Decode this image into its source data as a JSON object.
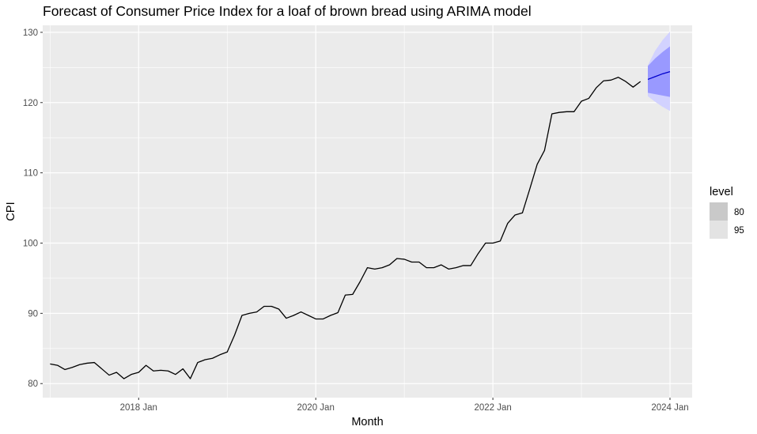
{
  "chart_data": {
    "type": "line",
    "title": "Forecast of Consumer Price Index for a loaf of brown bread using ARIMA model",
    "xlabel": "Month",
    "ylabel": "CPI",
    "xlim": [
      "2016-12",
      "2024-04"
    ],
    "ylim": [
      78,
      131
    ],
    "x_ticks": [
      {
        "date": "2018-01",
        "label": "2018 Jan"
      },
      {
        "date": "2020-01",
        "label": "2020 Jan"
      },
      {
        "date": "2022-01",
        "label": "2022 Jan"
      },
      {
        "date": "2024-01",
        "label": "2024 Jan"
      }
    ],
    "y_ticks": [
      80,
      90,
      100,
      110,
      120,
      130
    ],
    "grid": true,
    "legend": {
      "title": "level",
      "position": "right",
      "entries": [
        {
          "label": "80",
          "color": "#c9c9c9"
        },
        {
          "label": "95",
          "color": "#e3e3e3"
        }
      ]
    },
    "colors": {
      "panel": "#ebebeb",
      "grid": "#ffffff",
      "history_line": "#000000",
      "forecast_line": "#0000cc",
      "band_80": "#9999ff",
      "band_95": "#d2d2ff"
    },
    "series": [
      {
        "name": "",
        "x": [
          "2017-01",
          "2017-02",
          "2017-03",
          "2017-04",
          "2017-05",
          "2017-06",
          "2017-07",
          "2017-08",
          "2017-09",
          "2017-10",
          "2017-11",
          "2017-12",
          "2018-01",
          "2018-02",
          "2018-03",
          "2018-04",
          "2018-05",
          "2018-06",
          "2018-07",
          "2018-08",
          "2018-09",
          "2018-10",
          "2018-11",
          "2018-12",
          "2019-01",
          "2019-02",
          "2019-03",
          "2019-04",
          "2019-05",
          "2019-06",
          "2019-07",
          "2019-08",
          "2019-09",
          "2019-10",
          "2019-11",
          "2019-12",
          "2020-01",
          "2020-02",
          "2020-03",
          "2020-04",
          "2020-05",
          "2020-06",
          "2020-07",
          "2020-08",
          "2020-09",
          "2020-10",
          "2020-11",
          "2020-12",
          "2021-01",
          "2021-02",
          "2021-03",
          "2021-04",
          "2021-05",
          "2021-06",
          "2021-07",
          "2021-08",
          "2021-09",
          "2021-10",
          "2021-11",
          "2021-12",
          "2022-01",
          "2022-02",
          "2022-03",
          "2022-04",
          "2022-05",
          "2022-06",
          "2022-07",
          "2022-08",
          "2022-09",
          "2022-10",
          "2022-11",
          "2022-12",
          "2023-01",
          "2023-02",
          "2023-03",
          "2023-04",
          "2023-05",
          "2023-06",
          "2023-07",
          "2023-08",
          "2023-09"
        ],
        "values": [
          82.8,
          82.6,
          82.0,
          82.3,
          82.7,
          82.9,
          83.0,
          82.1,
          81.2,
          81.6,
          80.7,
          81.3,
          81.6,
          82.6,
          81.8,
          81.9,
          81.8,
          81.3,
          82.1,
          80.7,
          83.0,
          83.4,
          83.6,
          84.1,
          84.5,
          86.9,
          89.7,
          90.0,
          90.2,
          91.0,
          91.0,
          90.6,
          89.3,
          89.7,
          90.2,
          89.7,
          89.2,
          89.2,
          89.7,
          90.1,
          92.6,
          92.7,
          94.5,
          96.5,
          96.3,
          96.5,
          96.9,
          97.8,
          97.7,
          97.3,
          97.3,
          96.5,
          96.5,
          96.9,
          96.3,
          96.5,
          96.8,
          96.8,
          98.5,
          100.0,
          100.0,
          100.3,
          102.8,
          104.0,
          104.3,
          107.7,
          111.2,
          113.2,
          118.4,
          118.6,
          118.7,
          118.7,
          120.2,
          120.6,
          122.1,
          123.1,
          123.2,
          123.6,
          123.0,
          122.2,
          123.0
        ]
      },
      {
        "name": "",
        "x": [
          "2023-10",
          "2023-11",
          "2023-12",
          "2024-01"
        ],
        "values": [
          123.3,
          123.7,
          124.1,
          124.4
        ],
        "lower_80": [
          121.4,
          121.2,
          121.0,
          120.8
        ],
        "upper_80": [
          125.2,
          126.3,
          127.2,
          128.0
        ],
        "lower_95": [
          120.9,
          120.1,
          119.4,
          118.8
        ],
        "upper_95": [
          125.3,
          127.4,
          128.9,
          130.1
        ]
      }
    ]
  }
}
